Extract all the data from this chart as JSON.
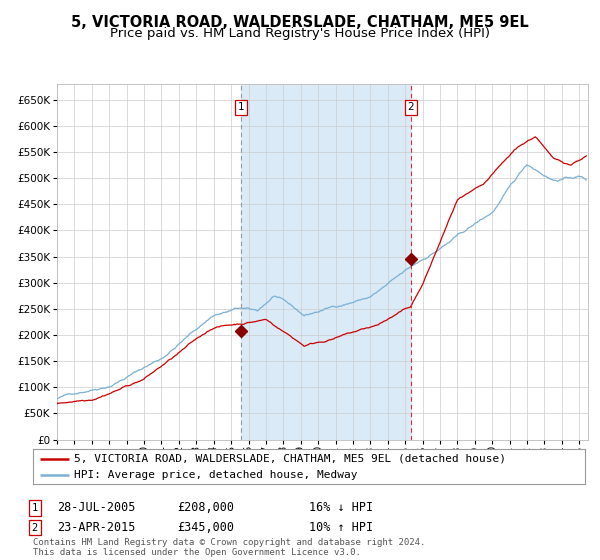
{
  "title": "5, VICTORIA ROAD, WALDERSLADE, CHATHAM, ME5 9EL",
  "subtitle": "Price paid vs. HM Land Registry's House Price Index (HPI)",
  "ylim": [
    0,
    680000
  ],
  "yticks": [
    0,
    50000,
    100000,
    150000,
    200000,
    250000,
    300000,
    350000,
    400000,
    450000,
    500000,
    550000,
    600000,
    650000
  ],
  "xlim_start": 1995.0,
  "xlim_end": 2025.5,
  "sale1_x": 2005.57,
  "sale1_y": 208000,
  "sale2_x": 2015.31,
  "sale2_y": 345000,
  "shade_color": "#daeaf7",
  "grid_color": "#cccccc",
  "bg_color": "#ffffff",
  "red_line_color": "#cc0000",
  "blue_line_color": "#7ab0d4",
  "marker_color": "#880000",
  "vline1_color": "#999999",
  "vline2_color": "#cc3333",
  "legend1_text": "5, VICTORIA ROAD, WALDERSLADE, CHATHAM, ME5 9EL (detached house)",
  "legend2_text": "HPI: Average price, detached house, Medway",
  "ann1_date": "28-JUL-2005",
  "ann1_price": "£208,000",
  "ann1_hpi": "16% ↓ HPI",
  "ann2_date": "23-APR-2015",
  "ann2_price": "£345,000",
  "ann2_hpi": "10% ↑ HPI",
  "footer": "Contains HM Land Registry data © Crown copyright and database right 2024.\nThis data is licensed under the Open Government Licence v3.0.",
  "title_fontsize": 10.5,
  "subtitle_fontsize": 9.5,
  "tick_fontsize": 7.5,
  "legend_fontsize": 8,
  "annotation_fontsize": 8.5,
  "footer_fontsize": 6.5
}
